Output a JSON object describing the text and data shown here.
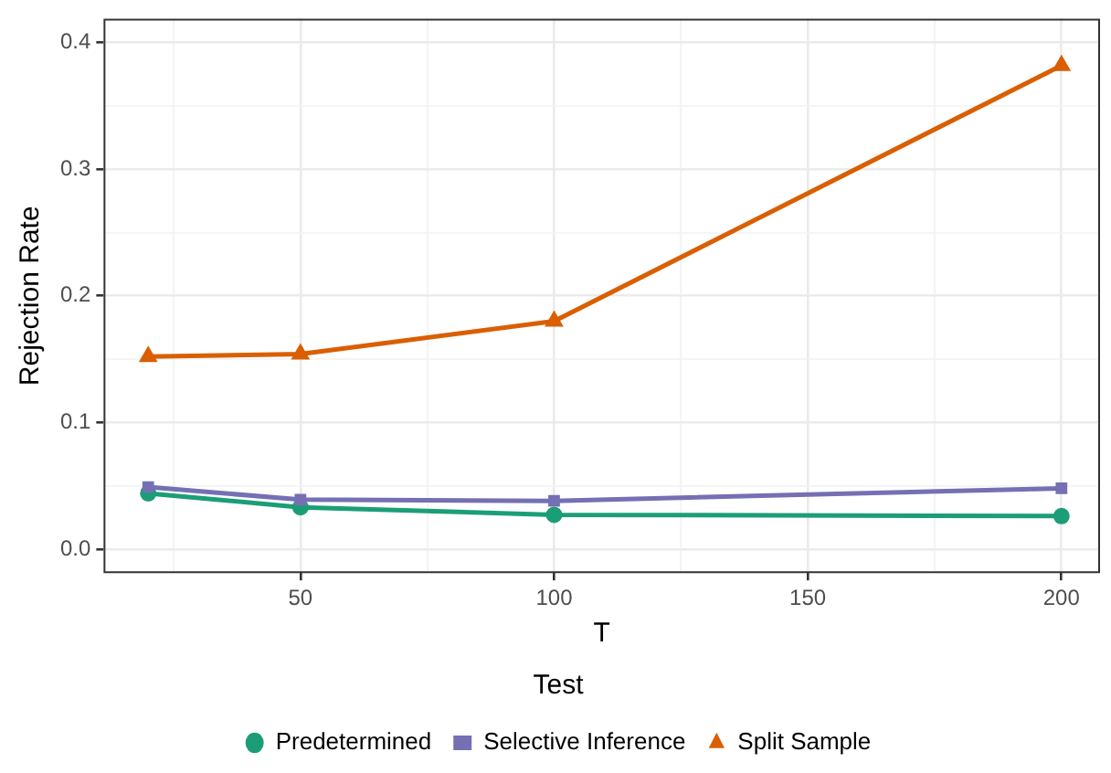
{
  "chart_data": {
    "type": "line",
    "xlabel": "T",
    "ylabel": "Rejection Rate",
    "legend_title": "Test",
    "legend": "bottom",
    "grid": true,
    "x": [
      20,
      50,
      100,
      200
    ],
    "xlim": [
      11.2,
      207.6
    ],
    "xticks": [
      {
        "value": 25,
        "label": null
      },
      50,
      {
        "value": 75,
        "label": null
      },
      100,
      {
        "value": 125,
        "label": null
      },
      150,
      {
        "value": 175,
        "label": null
      },
      200
    ],
    "ylim": [
      -0.019,
      0.419
    ],
    "yticks": [
      {
        "value": 0,
        "label": "0.0"
      },
      {
        "value": 0.05,
        "label": null
      },
      {
        "value": 0.1,
        "label": "0.1"
      },
      {
        "value": 0.15,
        "label": null
      },
      {
        "value": 0.2,
        "label": "0.2"
      },
      {
        "value": 0.25,
        "label": null
      },
      {
        "value": 0.3,
        "label": "0.3"
      },
      {
        "value": 0.35,
        "label": null
      },
      {
        "value": 0.4,
        "label": "0.4"
      }
    ],
    "series": [
      {
        "name": "Predetermined",
        "color": "#1b9e77",
        "marker": "circle",
        "values": [
          0.044,
          0.033,
          0.027,
          0.026
        ]
      },
      {
        "name": "Selective Inference",
        "color": "#7570b3",
        "marker": "square",
        "values": [
          0.049,
          0.039,
          0.038,
          0.048
        ]
      },
      {
        "name": "Split Sample",
        "color": "#d95f02",
        "marker": "triangle",
        "values": [
          0.152,
          0.154,
          0.18,
          0.382
        ]
      }
    ]
  }
}
